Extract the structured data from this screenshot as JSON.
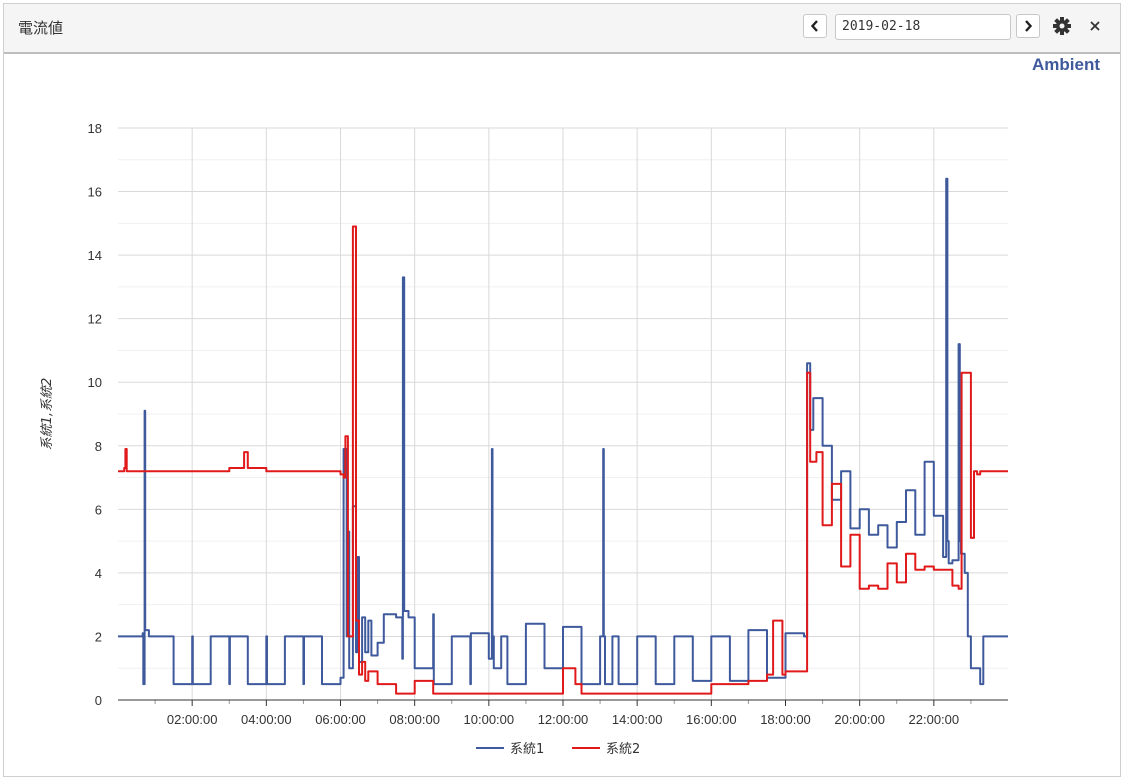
{
  "header": {
    "title": "電流値",
    "date_value": "2019-02-18"
  },
  "brand": "Ambient",
  "icons": {
    "prev": "chevron-left-icon",
    "next": "chevron-right-icon",
    "settings": "gear-icon",
    "close": "close-icon"
  },
  "chart_data": {
    "type": "line",
    "title": "",
    "xlabel": "",
    "ylabel": "系統1,系統2",
    "ylim": [
      0,
      18
    ],
    "xlim_hours": [
      0,
      24
    ],
    "y_ticks": [
      "0",
      "2",
      "4",
      "6",
      "8",
      "10",
      "12",
      "14",
      "16",
      "18"
    ],
    "x_ticks": [
      "02:00:00",
      "04:00:00",
      "06:00:00",
      "08:00:00",
      "10:00:00",
      "12:00:00",
      "14:00:00",
      "16:00:00",
      "18:00:00",
      "20:00:00",
      "22:00:00"
    ],
    "grid": true,
    "legend_position": "bottom",
    "series": [
      {
        "name": "系統1",
        "color": "#3f5a9c",
        "x": [
          "00:00",
          "00:40",
          "00:41",
          "00:43",
          "00:44",
          "00:50",
          "01:00",
          "01:30",
          "02:00",
          "02:01",
          "02:30",
          "03:00",
          "03:01",
          "03:30",
          "04:00",
          "04:01",
          "04:30",
          "05:00",
          "05:01",
          "05:30",
          "06:00",
          "06:05",
          "06:10",
          "06:11",
          "06:14",
          "06:20",
          "06:25",
          "06:27",
          "06:30",
          "06:35",
          "06:40",
          "06:45",
          "06:50",
          "07:00",
          "07:10",
          "07:30",
          "07:40",
          "07:41",
          "07:43",
          "07:50",
          "08:00",
          "08:30",
          "08:31",
          "09:00",
          "09:30",
          "09:31",
          "10:00",
          "10:05",
          "10:06",
          "10:08",
          "10:20",
          "10:30",
          "11:00",
          "11:30",
          "12:00",
          "12:30",
          "13:00",
          "13:05",
          "13:06",
          "13:08",
          "13:20",
          "13:30",
          "14:00",
          "14:30",
          "15:00",
          "15:30",
          "16:00",
          "16:30",
          "17:00",
          "17:30",
          "18:00",
          "18:30",
          "18:35",
          "18:40",
          "18:45",
          "19:00",
          "19:15",
          "19:30",
          "19:45",
          "20:00",
          "20:15",
          "20:30",
          "20:45",
          "21:00",
          "21:15",
          "21:30",
          "21:45",
          "22:00",
          "22:15",
          "22:20",
          "22:22",
          "22:24",
          "22:30",
          "22:40",
          "22:42",
          "22:44",
          "22:50",
          "22:55",
          "23:00",
          "23:15",
          "23:20",
          "23:40",
          "24:00"
        ],
        "y": [
          2.0,
          2.1,
          0.5,
          9.1,
          2.2,
          2.0,
          2.0,
          0.5,
          2.0,
          0.5,
          2.0,
          0.5,
          2.0,
          0.5,
          2.0,
          0.5,
          2.0,
          0.5,
          2.0,
          0.5,
          0.7,
          7.9,
          2.0,
          5.3,
          1.0,
          6.1,
          1.5,
          4.5,
          1.2,
          2.6,
          1.5,
          2.5,
          1.4,
          1.8,
          2.7,
          2.6,
          1.3,
          13.3,
          2.8,
          2.6,
          1.0,
          2.7,
          0.5,
          2.0,
          0.5,
          2.1,
          1.3,
          7.9,
          2.0,
          1.0,
          2.0,
          0.5,
          2.4,
          1.0,
          2.3,
          0.5,
          2.0,
          7.9,
          2.0,
          0.5,
          2.0,
          0.5,
          2.0,
          0.5,
          2.0,
          0.6,
          2.0,
          0.6,
          2.2,
          0.7,
          2.1,
          2.0,
          10.6,
          8.5,
          9.5,
          8.0,
          6.3,
          7.2,
          5.4,
          6.0,
          5.2,
          5.5,
          4.8,
          5.6,
          6.6,
          5.2,
          7.5,
          5.8,
          4.5,
          16.4,
          5.0,
          4.3,
          4.4,
          11.2,
          5.0,
          4.6,
          4.0,
          2.0,
          1.0,
          0.5,
          2.0,
          2.0,
          2.0
        ]
      },
      {
        "name": "系統2",
        "color": "#e01a1a",
        "x": [
          "00:00",
          "00:10",
          "00:12",
          "00:14",
          "01:00",
          "02:00",
          "03:00",
          "03:20",
          "03:24",
          "03:30",
          "04:00",
          "05:00",
          "06:00",
          "06:05",
          "06:08",
          "06:12",
          "06:20",
          "06:25",
          "06:30",
          "06:35",
          "06:40",
          "06:45",
          "07:00",
          "07:30",
          "08:00",
          "08:30",
          "09:00",
          "10:00",
          "10:30",
          "11:00",
          "11:30",
          "11:55",
          "12:00",
          "12:20",
          "12:30",
          "13:00",
          "14:00",
          "15:00",
          "16:00",
          "16:45",
          "17:00",
          "17:30",
          "17:40",
          "17:55",
          "18:00",
          "18:30",
          "18:35",
          "18:40",
          "18:50",
          "19:00",
          "19:15",
          "19:30",
          "19:45",
          "20:00",
          "20:15",
          "20:30",
          "20:45",
          "21:00",
          "21:15",
          "21:30",
          "21:45",
          "22:00",
          "22:15",
          "22:30",
          "22:40",
          "22:45",
          "23:00",
          "23:05",
          "23:10",
          "23:15",
          "24:00"
        ],
        "y": [
          7.2,
          7.3,
          7.9,
          7.2,
          7.2,
          7.2,
          7.3,
          7.3,
          7.8,
          7.3,
          7.2,
          7.2,
          7.1,
          7.0,
          8.3,
          2.0,
          14.9,
          2.5,
          0.8,
          1.2,
          0.6,
          0.9,
          0.5,
          0.2,
          0.6,
          0.2,
          0.2,
          0.2,
          0.2,
          0.2,
          0.2,
          0.2,
          1.0,
          0.5,
          0.2,
          0.2,
          0.2,
          0.2,
          0.5,
          0.5,
          0.6,
          0.8,
          2.5,
          0.8,
          0.9,
          0.9,
          10.3,
          7.5,
          7.8,
          5.5,
          6.8,
          4.2,
          5.2,
          3.5,
          3.6,
          3.5,
          4.3,
          3.7,
          4.6,
          4.1,
          4.2,
          4.1,
          4.1,
          3.6,
          3.5,
          10.3,
          5.1,
          7.2,
          7.1,
          7.2,
          7.2
        ]
      }
    ]
  }
}
